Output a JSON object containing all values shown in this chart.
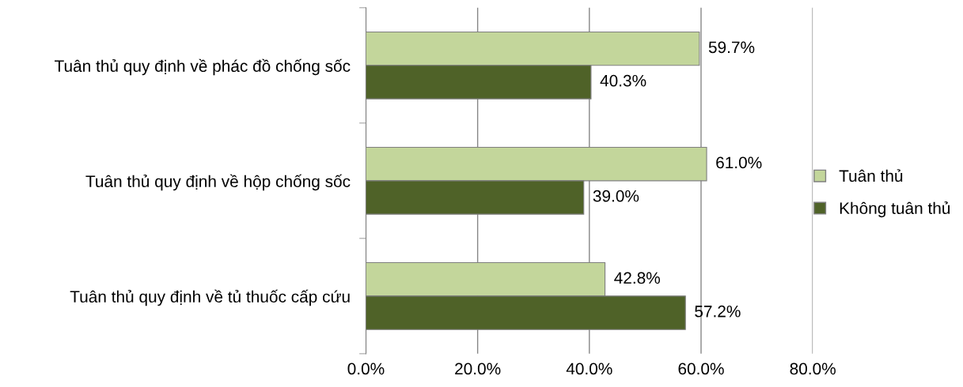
{
  "chart_data": {
    "type": "bar",
    "orientation": "horizontal",
    "categories": [
      "Tuân thủ quy định về phác đồ chống sốc",
      "Tuân thủ quy định về hộp chống sốc",
      "Tuân thủ quy định về tủ thuốc cấp cứu"
    ],
    "series": [
      {
        "name": "Tuân thủ",
        "color": "#c3d69b",
        "values": [
          59.7,
          61.0,
          42.8
        ],
        "value_labels": [
          "59.7%",
          "61.0%",
          "42.8%"
        ]
      },
      {
        "name": "Không tuân thủ",
        "color": "#4f6228",
        "values": [
          40.3,
          39.0,
          57.2
        ],
        "value_labels": [
          "40.3%",
          "39.0%",
          "57.2%"
        ]
      }
    ],
    "xlim": [
      0,
      80
    ],
    "xticks": [
      {
        "value": 0,
        "label": "0.0%"
      },
      {
        "value": 20,
        "label": "20.0%"
      },
      {
        "value": 40,
        "label": "40.0%"
      },
      {
        "value": 60,
        "label": "60.0%"
      },
      {
        "value": 80,
        "label": "80.0%"
      }
    ],
    "grid": "x",
    "legend": "right"
  }
}
